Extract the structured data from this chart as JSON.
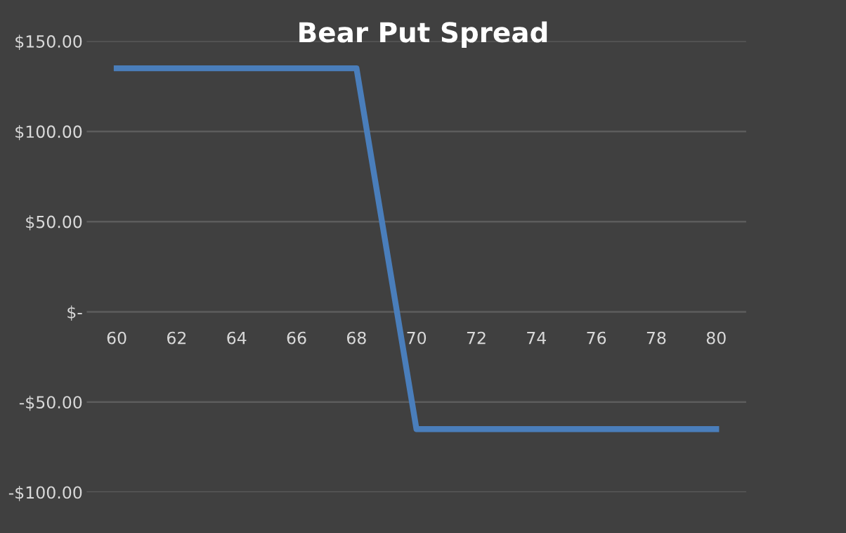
{
  "chart_data": {
    "type": "line",
    "title": "Bear Put Spread",
    "x": [
      60,
      68,
      70,
      80
    ],
    "series": [
      {
        "color": "#4a7ebb",
        "values": [
          135,
          135,
          -65,
          -65
        ]
      }
    ],
    "xlim": [
      59,
      81
    ],
    "xticks": [
      60,
      62,
      64,
      66,
      68,
      70,
      72,
      74,
      76,
      78,
      80
    ],
    "ylim": [
      -100,
      150
    ],
    "yticks": [
      {
        "value": -100,
        "label": "-$100.00"
      },
      {
        "value": -50,
        "label": "-$50.00"
      },
      {
        "value": 0,
        "label": "$-"
      },
      {
        "value": 50,
        "label": "$50.00"
      },
      {
        "value": 100,
        "label": "$100.00"
      },
      {
        "value": 150,
        "label": "$150.00"
      }
    ],
    "grid": "y",
    "marker": "none",
    "line_style": "solid"
  }
}
